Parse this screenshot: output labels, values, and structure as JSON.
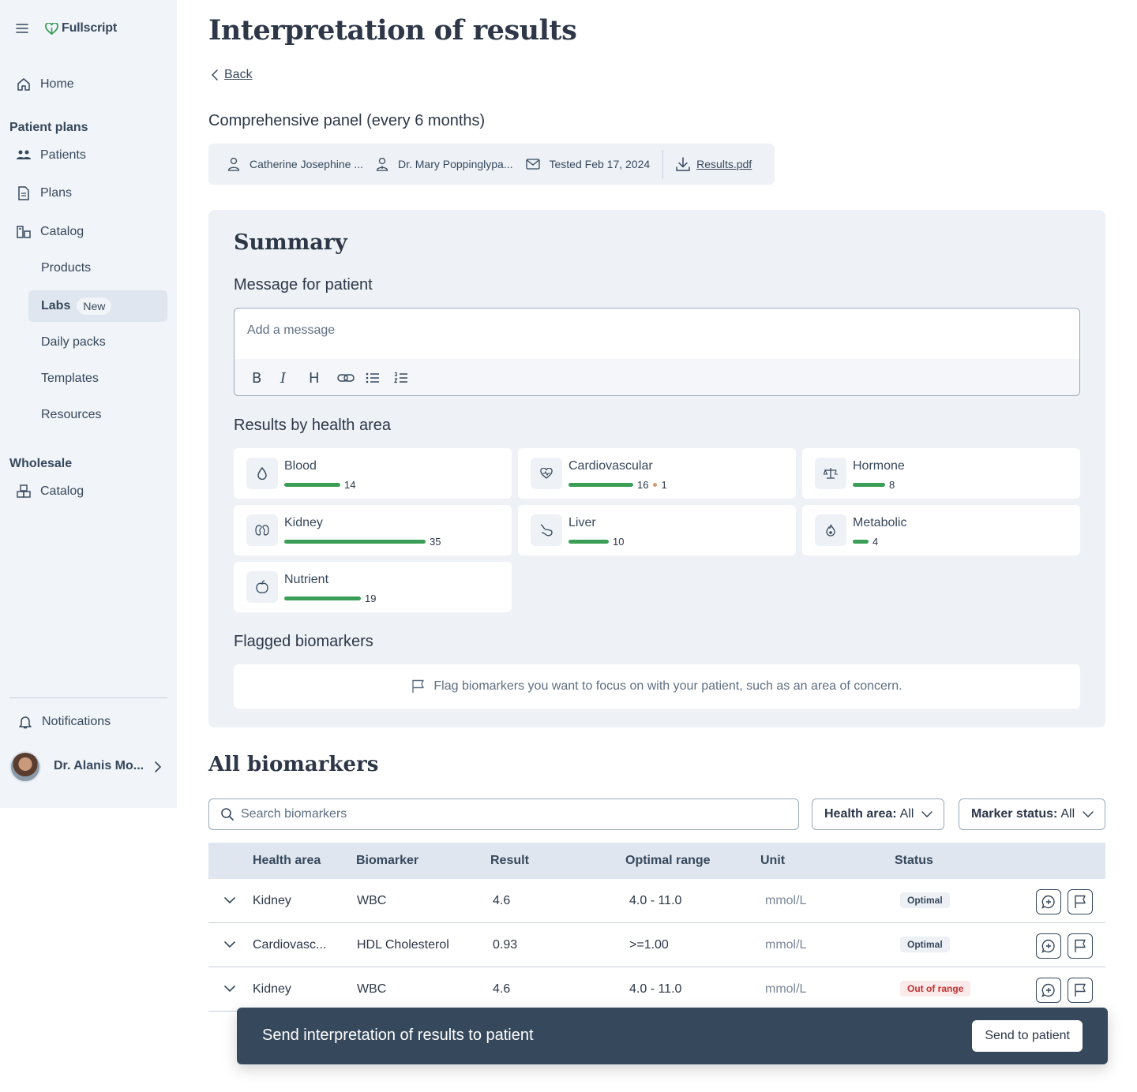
{
  "sidebar": {
    "logo": "Fullscript",
    "home": "Home",
    "patient_plans_heading": "Patient plans",
    "patients": "Patients",
    "plans": "Plans",
    "catalog": "Catalog",
    "products": "Products",
    "labs": "Labs",
    "labs_badge": "New",
    "daily_packs": "Daily packs",
    "templates": "Templates",
    "resources": "Resources",
    "wholesale_heading": "Wholesale",
    "wholesale_catalog": "Catalog",
    "notifications": "Notifications",
    "user_name": "Dr. Alanis Mo..."
  },
  "header": {
    "title": "Interpretation of results",
    "back": "Back"
  },
  "panel": {
    "title": "Comprehensive panel (every 6 months)",
    "patient": "Catherine Josephine ...",
    "practitioner": "Dr. Mary Poppinglypa...",
    "tested": "Tested Feb 17, 2024",
    "pdf": "Results.pdf"
  },
  "summary": {
    "title": "Summary",
    "message_heading": "Message for patient",
    "message_placeholder": "Add a message",
    "toolbar": {
      "bold": "B",
      "italic": "I",
      "heading": "H"
    },
    "results_heading": "Results by health area",
    "health_areas": [
      {
        "name": "Blood",
        "optimal": 14,
        "out_of_range": 0,
        "icon": "drop-icon"
      },
      {
        "name": "Cardiovascular",
        "optimal": 16,
        "out_of_range": 1,
        "icon": "heart-pulse-icon"
      },
      {
        "name": "Hormone",
        "optimal": 8,
        "out_of_range": 0,
        "icon": "scale-icon"
      },
      {
        "name": "Kidney",
        "optimal": 35,
        "out_of_range": 0,
        "icon": "kidney-icon"
      },
      {
        "name": "Liver",
        "optimal": 10,
        "out_of_range": 0,
        "icon": "liver-icon"
      },
      {
        "name": "Metabolic",
        "optimal": 4,
        "out_of_range": 0,
        "icon": "flame-icon"
      },
      {
        "name": "Nutrient",
        "optimal": 19,
        "out_of_range": 0,
        "icon": "apple-icon"
      }
    ],
    "flagged_heading": "Flagged biomarkers",
    "flagged_empty": "Flag biomarkers you want to focus on with your patient, such as an area of concern."
  },
  "biomarkers": {
    "title": "All biomarkers",
    "search_placeholder": "Search biomarkers",
    "health_area_filter_label": "Health area:",
    "health_area_filter_value": "All",
    "marker_status_filter_label": "Marker status:",
    "marker_status_filter_value": "All",
    "columns": [
      "Health area",
      "Biomarker",
      "Result",
      "Optimal range",
      "Unit",
      "Status"
    ],
    "rows": [
      {
        "area": "Kidney",
        "biomarker": "WBC",
        "result": "4.6",
        "range": "4.0 - 11.0",
        "unit": "mmol/L",
        "status": "Optimal"
      },
      {
        "area": "Cardiovasc...",
        "biomarker": "HDL Cholesterol",
        "result": "0.93",
        "range": ">=1.00",
        "unit": "mmol/L",
        "status": "Optimal"
      },
      {
        "area": "Kidney",
        "biomarker": "WBC",
        "result": "4.6",
        "range": "4.0 - 11.0",
        "unit": "mmol/L",
        "status": "Out of range"
      }
    ]
  },
  "toast": {
    "text": "Send interpretation of results to patient",
    "button": "Send to patient"
  },
  "colors": {
    "bar_optimal": "#3a9e57",
    "bar_out_of_range": "#d99a6c",
    "toast_bg": "#36485c",
    "sidebar_bg": "#f1f4f8"
  }
}
